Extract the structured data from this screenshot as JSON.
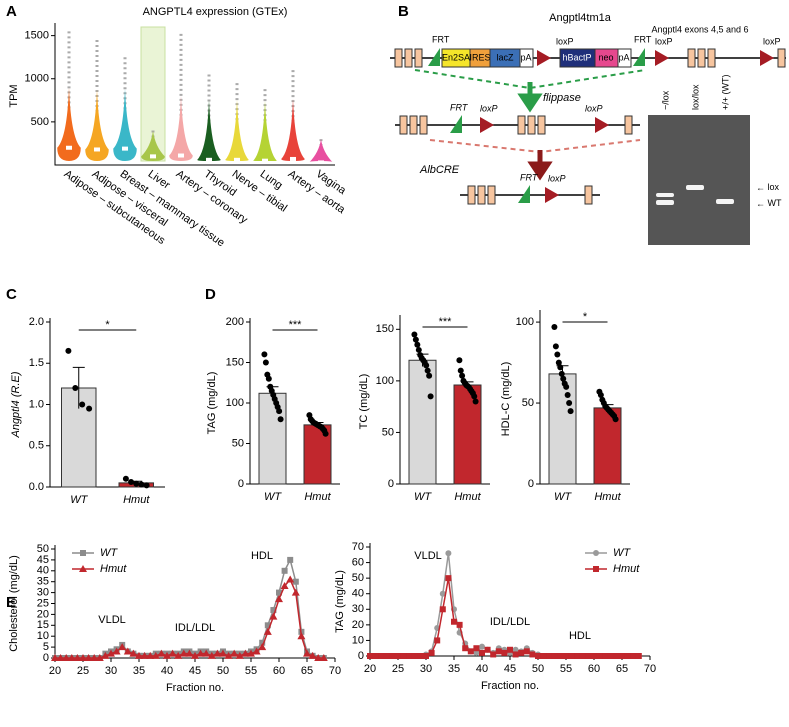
{
  "panel_labels": [
    "A",
    "B",
    "C",
    "D",
    "E"
  ],
  "diagram": {
    "title": "Angptl4tm1a",
    "exon_note": "Angptl4 exons 4,5 and 6",
    "construct": [
      "FRT",
      "En2SA",
      "IRES",
      "lacZ",
      "pA",
      "loxP",
      "hBactP",
      "neo",
      "pA",
      "FRT",
      "loxP",
      "loxP"
    ],
    "step1": "flippase",
    "construct2": [
      "FRT",
      "loxP",
      "loxP"
    ],
    "step2": "AlbCRE",
    "construct3": [
      "FRT",
      "loxP"
    ],
    "gel_lanes": [
      "−/lox",
      "lox/lox",
      "+/+ (WT)"
    ],
    "gel_bands": [
      "lox",
      "WT"
    ]
  },
  "chart_data": [
    {
      "type": "violin",
      "title": "ANGPTL4 expression (GTEx)",
      "y_label": "TPM",
      "categories": [
        "Adipose – subcutaneous",
        "Adipose – visceral",
        "Breast – mammary tissue",
        "Liver",
        "Artery – coronary",
        "Thyroid",
        "Nerve – tibial",
        "Lung",
        "Artery – aorta",
        "Vagina"
      ],
      "values": [
        200,
        180,
        190,
        100,
        110,
        60,
        60,
        50,
        70,
        30
      ],
      "maxima": [
        1550,
        1450,
        1250,
        400,
        1520,
        1050,
        950,
        880,
        1100,
        300
      ],
      "colors": [
        "#f26b1d",
        "#f5a623",
        "#3ab7c8",
        "#a8c64a",
        "#f4a7a7",
        "#1a5e20",
        "#e8d83a",
        "#b5d334",
        "#e8433a",
        "#e84fa0"
      ],
      "highlight": "Liver",
      "ylim": [
        0,
        1600
      ],
      "yticks": [
        500,
        1000,
        1500
      ]
    },
    {
      "type": "bar",
      "y_label": "Angptl4 (R.E)",
      "categories": [
        "WT",
        "Hmut"
      ],
      "values": [
        1.2,
        0.05
      ],
      "errors": [
        0.25,
        0.02
      ],
      "points": [
        [
          1.65,
          1.2,
          1.0,
          0.95
        ],
        [
          0.1,
          0.06,
          0.04,
          0.03,
          0.02
        ]
      ],
      "colors": [
        "#d9d9d9",
        "#c1272d"
      ],
      "significance": "*",
      "ylim": [
        0,
        2
      ],
      "yticks": [
        {
          "value": 0,
          "label": "0.0"
        },
        0.5,
        {
          "value": 1,
          "label": "1.0"
        },
        1.5,
        {
          "value": 2,
          "label": "2.0"
        }
      ]
    },
    {
      "type": "bar",
      "y_label": "TAG (mg/dL)",
      "categories": [
        "WT",
        "Hmut"
      ],
      "values": [
        112,
        73
      ],
      "errors": [
        8,
        3
      ],
      "points": [
        [
          160,
          150,
          135,
          130,
          120,
          115,
          110,
          105,
          100,
          95,
          90,
          80
        ],
        [
          85,
          80,
          78,
          76,
          75,
          74,
          73,
          72,
          71,
          70,
          68,
          66,
          62
        ]
      ],
      "colors": [
        "#d9d9d9",
        "#c1272d"
      ],
      "significance": "***",
      "ylim": [
        0,
        200
      ],
      "yticks": [
        0,
        50,
        100,
        150,
        200
      ]
    },
    {
      "type": "bar",
      "y_label": "TC (mg/dL)",
      "categories": [
        "WT",
        "Hmut"
      ],
      "values": [
        120,
        96
      ],
      "errors": [
        6,
        3
      ],
      "points": [
        [
          145,
          140,
          135,
          130,
          125,
          122,
          120,
          118,
          115,
          110,
          105,
          85
        ],
        [
          120,
          110,
          105,
          100,
          98,
          96,
          95,
          94,
          92,
          90,
          88,
          85,
          80
        ]
      ],
      "colors": [
        "#d9d9d9",
        "#c1272d"
      ],
      "significance": "***",
      "ylim": [
        0,
        160
      ],
      "yticks": [
        0,
        50,
        100,
        150
      ]
    },
    {
      "type": "bar",
      "y_label": "HDL-C (mg/dL)",
      "categories": [
        "WT",
        "Hmut"
      ],
      "values": [
        68,
        47
      ],
      "errors": [
        5,
        2
      ],
      "points": [
        [
          97,
          85,
          80,
          75,
          72,
          68,
          65,
          62,
          60,
          55,
          50,
          45
        ],
        [
          57,
          55,
          52,
          50,
          48,
          47,
          46,
          45,
          44,
          43,
          42,
          40
        ]
      ],
      "colors": [
        "#d9d9d9",
        "#c1272d"
      ],
      "significance": "*",
      "ylim": [
        0,
        105
      ],
      "yticks": [
        0,
        50,
        100
      ]
    },
    {
      "type": "line",
      "x_label": "Fraction no.",
      "y_label": "Cholesterol (mg/dL)",
      "legend": "upper left",
      "annotations": [
        "VLDL",
        "IDL/LDL",
        "HDL"
      ],
      "x": [
        20,
        21,
        22,
        23,
        24,
        25,
        26,
        27,
        28,
        29,
        30,
        31,
        32,
        33,
        34,
        35,
        36,
        37,
        38,
        39,
        40,
        41,
        42,
        43,
        44,
        45,
        46,
        47,
        48,
        49,
        50,
        51,
        52,
        53,
        54,
        55,
        56,
        57,
        58,
        59,
        60,
        61,
        62,
        63,
        64,
        65,
        66,
        67,
        68
      ],
      "series": [
        {
          "name": "WT",
          "color": "#8c8c8c",
          "marker": "square",
          "values": [
            0,
            0,
            0,
            0,
            0,
            0,
            0,
            0,
            0,
            2,
            3,
            4,
            6,
            3,
            2,
            1,
            1,
            1,
            2,
            2,
            2,
            2,
            2,
            3,
            3,
            2,
            3,
            3,
            2,
            2,
            3,
            2,
            2,
            2,
            2,
            3,
            4,
            7,
            15,
            22,
            30,
            40,
            45,
            35,
            12,
            3,
            1,
            0,
            0
          ]
        },
        {
          "name": "Hmut",
          "color": "#c1272d",
          "marker": "triangle",
          "values": [
            0,
            0,
            0,
            0,
            0,
            0,
            0,
            0,
            0,
            1,
            2,
            3,
            5,
            3,
            2,
            1,
            1,
            1,
            1,
            2,
            1,
            2,
            1,
            2,
            2,
            1,
            2,
            2,
            1,
            2,
            2,
            1,
            2,
            1,
            2,
            2,
            3,
            5,
            12,
            19,
            27,
            33,
            36,
            30,
            10,
            2,
            1,
            0,
            0
          ]
        }
      ],
      "xlim": [
        20,
        70
      ],
      "xticks": [
        20,
        25,
        30,
        35,
        40,
        45,
        50,
        55,
        60,
        65,
        70
      ],
      "ylim": [
        0,
        50
      ],
      "yticks": [
        0,
        5,
        10,
        15,
        20,
        25,
        30,
        35,
        40,
        45,
        50
      ]
    },
    {
      "type": "line",
      "x_label": "Fraction no.",
      "y_label": "TAG (mg/dL)",
      "legend": "upper right",
      "annotations": [
        "VLDL",
        "IDL/LDL",
        "HDL"
      ],
      "x": [
        20,
        21,
        22,
        23,
        24,
        25,
        26,
        27,
        28,
        29,
        30,
        31,
        32,
        33,
        34,
        35,
        36,
        37,
        38,
        39,
        40,
        41,
        42,
        43,
        44,
        45,
        46,
        47,
        48,
        49,
        50,
        51,
        52,
        53,
        54,
        55,
        56,
        57,
        58,
        59,
        60,
        61,
        62,
        63,
        64,
        65,
        66,
        67,
        68
      ],
      "series": [
        {
          "name": "WT",
          "color": "#9a9a9a",
          "marker": "circle",
          "values": [
            0,
            0,
            0,
            0,
            0,
            0,
            0,
            0,
            0,
            0,
            1,
            3,
            18,
            40,
            66,
            30,
            15,
            8,
            3,
            2,
            6,
            4,
            2,
            5,
            4,
            2,
            4,
            3,
            5,
            2,
            1,
            0,
            0,
            0,
            0,
            0,
            0,
            0,
            0,
            0,
            0,
            0,
            0,
            0,
            0,
            0,
            0,
            0,
            0
          ]
        },
        {
          "name": "Hmut",
          "color": "#c1272d",
          "marker": "square",
          "values": [
            0,
            0,
            0,
            0,
            0,
            0,
            0,
            0,
            0,
            0,
            0,
            2,
            10,
            30,
            50,
            22,
            20,
            5,
            3,
            5,
            2,
            4,
            1,
            3,
            2,
            4,
            1,
            2,
            3,
            1,
            0,
            0,
            0,
            0,
            0,
            0,
            0,
            0,
            0,
            0,
            0,
            0,
            0,
            0,
            0,
            0,
            0,
            0,
            0
          ]
        }
      ],
      "xlim": [
        20,
        70
      ],
      "xticks": [
        20,
        25,
        30,
        35,
        40,
        45,
        50,
        55,
        60,
        65,
        70
      ],
      "ylim": [
        0,
        70
      ],
      "yticks": [
        0,
        10,
        20,
        30,
        40,
        50,
        60,
        70
      ]
    }
  ]
}
